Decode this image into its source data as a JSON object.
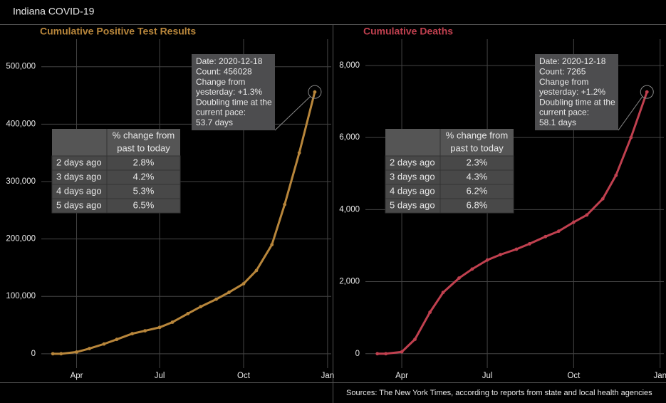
{
  "title": "Indiana COVID-19",
  "source": "Sources: The New York Times, according to reports from state and local health agencies",
  "chart_data": [
    {
      "type": "line",
      "title": "Cumulative Positive Test Results",
      "color": "#b8863b",
      "grid": true,
      "x": [
        "2020-03-06",
        "2020-03-15",
        "2020-04-01",
        "2020-04-15",
        "2020-05-01",
        "2020-05-15",
        "2020-06-01",
        "2020-06-15",
        "2020-07-01",
        "2020-07-15",
        "2020-08-01",
        "2020-08-15",
        "2020-09-01",
        "2020-09-15",
        "2020-10-01",
        "2020-10-15",
        "2020-11-01",
        "2020-11-15",
        "2020-12-01",
        "2020-12-18"
      ],
      "values": [
        0,
        20,
        3000,
        9000,
        17000,
        25000,
        35000,
        40000,
        46000,
        55000,
        70000,
        82000,
        95000,
        107000,
        122000,
        145000,
        190000,
        260000,
        350000,
        456028
      ],
      "xlim": [
        "2020-02-20",
        "2021-01-05"
      ],
      "xticks": [
        {
          "value": "2020-04-01",
          "label": "Apr"
        },
        {
          "value": "2020-07-01",
          "label": "Jul"
        },
        {
          "value": "2020-10-01",
          "label": "Oct"
        },
        {
          "value": "2021-01-01",
          "label": "Jan"
        }
      ],
      "ylim": [
        -25000,
        548000
      ],
      "yticks": [
        0,
        {
          "value": 100000,
          "label": "100,000"
        },
        {
          "value": 200000,
          "label": "200,000"
        },
        {
          "value": 300000,
          "label": "300,000"
        },
        {
          "value": 400000,
          "label": "400,000"
        },
        {
          "value": 500000,
          "label": "500,000"
        }
      ],
      "annotation": [
        "Date: 2020-12-18",
        "Count: 456028",
        "Change from",
        "yesterday: +1.3%",
        "Doubling time at the",
        "current pace:",
        "53.7 days"
      ],
      "table": {
        "column_header": [
          "% change from",
          "past to today"
        ],
        "rows": [
          [
            "2 days ago",
            "2.8%"
          ],
          [
            "3 days ago",
            "4.2%"
          ],
          [
            "4 days ago",
            "5.3%"
          ],
          [
            "5 days ago",
            "6.5%"
          ]
        ]
      }
    },
    {
      "type": "line",
      "title": "Cumulative Deaths",
      "color": "#c0404f",
      "grid": true,
      "x": [
        "2020-03-06",
        "2020-03-15",
        "2020-04-01",
        "2020-04-15",
        "2020-05-01",
        "2020-05-15",
        "2020-06-01",
        "2020-06-15",
        "2020-07-01",
        "2020-07-15",
        "2020-08-01",
        "2020-08-15",
        "2020-09-01",
        "2020-09-15",
        "2020-10-01",
        "2020-10-15",
        "2020-11-01",
        "2020-11-15",
        "2020-12-01",
        "2020-12-18"
      ],
      "values": [
        0,
        0,
        50,
        400,
        1150,
        1700,
        2100,
        2350,
        2600,
        2750,
        2900,
        3050,
        3250,
        3400,
        3650,
        3850,
        4300,
        4950,
        6000,
        7265
      ],
      "xlim": [
        "2020-02-20",
        "2021-01-05"
      ],
      "xticks": [
        {
          "value": "2020-04-01",
          "label": "Apr"
        },
        {
          "value": "2020-07-01",
          "label": "Jul"
        },
        {
          "value": "2020-10-01",
          "label": "Oct"
        },
        {
          "value": "2021-01-01",
          "label": "Jan"
        }
      ],
      "ylim": [
        -400,
        8730
      ],
      "yticks": [
        0,
        {
          "value": 2000,
          "label": "2,000"
        },
        {
          "value": 4000,
          "label": "4,000"
        },
        {
          "value": 6000,
          "label": "6,000"
        },
        {
          "value": 8000,
          "label": "8,000"
        }
      ],
      "annotation": [
        "Date: 2020-12-18",
        "Count: 7265",
        "Change from",
        "yesterday: +1.2%",
        "Doubling time at the",
        "current pace:",
        "58.1 days"
      ],
      "table": {
        "column_header": [
          "% change from",
          "past to today"
        ],
        "rows": [
          [
            "2 days ago",
            "2.3%"
          ],
          [
            "3 days ago",
            "4.3%"
          ],
          [
            "4 days ago",
            "6.2%"
          ],
          [
            "5 days ago",
            "6.8%"
          ]
        ]
      }
    }
  ]
}
